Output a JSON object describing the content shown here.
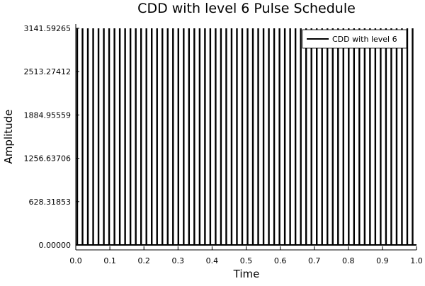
{
  "chart_data": {
    "type": "line",
    "title": "CDD with level 6 Pulse Schedule",
    "xlabel": "Time",
    "ylabel": "Amplitude",
    "xlim": [
      0.0,
      1.0
    ],
    "ylim": [
      0.0,
      3141.59265
    ],
    "x_ticks": [
      "0.0",
      "0.1",
      "0.2",
      "0.3",
      "0.4",
      "0.5",
      "0.6",
      "0.7",
      "0.8",
      "0.9",
      "1.0"
    ],
    "y_ticks": [
      "0.00000",
      "628.31853",
      "1256.63706",
      "1884.95559",
      "2513.27412",
      "3141.59265"
    ],
    "y_tick_values": [
      0.0,
      628.31853,
      1256.63706,
      1884.95559,
      2513.27412,
      3141.59265
    ],
    "grid": false,
    "legend_position": "top-right",
    "series": [
      {
        "name": "CDD with level 6",
        "color": "#000000",
        "baseline": 0.0,
        "pulse_amplitude": 3141.59265,
        "pulse_count": 64,
        "pulse_times": [
          0.0,
          0.015625,
          0.03125,
          0.046875,
          0.0625,
          0.078125,
          0.09375,
          0.109375,
          0.125,
          0.140625,
          0.15625,
          0.171875,
          0.1875,
          0.203125,
          0.21875,
          0.234375,
          0.25,
          0.265625,
          0.28125,
          0.296875,
          0.3125,
          0.328125,
          0.34375,
          0.359375,
          0.375,
          0.390625,
          0.40625,
          0.421875,
          0.4375,
          0.453125,
          0.46875,
          0.484375,
          0.5,
          0.515625,
          0.53125,
          0.546875,
          0.5625,
          0.578125,
          0.59375,
          0.609375,
          0.625,
          0.640625,
          0.65625,
          0.671875,
          0.6875,
          0.703125,
          0.71875,
          0.734375,
          0.75,
          0.765625,
          0.78125,
          0.796875,
          0.8125,
          0.828125,
          0.84375,
          0.859375,
          0.875,
          0.890625,
          0.90625,
          0.921875,
          0.9375,
          0.953125,
          0.96875,
          0.984375
        ]
      }
    ]
  }
}
